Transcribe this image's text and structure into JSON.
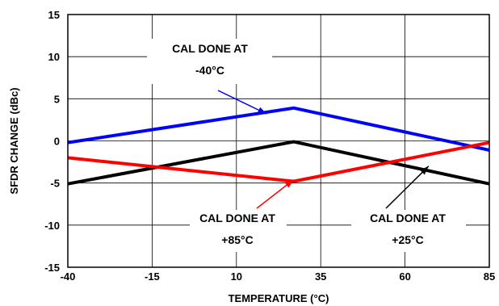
{
  "chart_data": {
    "type": "line",
    "title": "",
    "xlabel": "TEMPERATURE (°C)",
    "ylabel": "SFDR CHANGE (dBc)",
    "xlim": [
      -40,
      85
    ],
    "ylim": [
      -15,
      15
    ],
    "xticks": [
      -40,
      -15,
      10,
      35,
      60,
      85
    ],
    "yticks": [
      -15,
      -10,
      -5,
      0,
      5,
      10,
      15
    ],
    "grid": true,
    "series": [
      {
        "name": "CAL DONE AT -40°C",
        "color": "#0000ff",
        "x": [
          -40,
          27,
          85
        ],
        "y": [
          -0.2,
          3.9,
          -1.1
        ]
      },
      {
        "name": "CAL DONE AT +25°C",
        "color": "#000000",
        "x": [
          -40,
          27,
          85
        ],
        "y": [
          -5.1,
          -0.1,
          -5.1
        ]
      },
      {
        "name": "CAL DONE AT +85°C",
        "color": "#ff0000",
        "x": [
          -40,
          27,
          85
        ],
        "y": [
          -2.0,
          -4.8,
          -0.2
        ]
      }
    ],
    "annotations": [
      {
        "lines": [
          "CAL DONE AT",
          "-40°C"
        ],
        "color": "#0000ff",
        "arrow_to": [
          19,
          3.2
        ]
      },
      {
        "lines": [
          "CAL DONE AT",
          "+85°C"
        ],
        "color": "#ff0000",
        "arrow_to": [
          27,
          -4.6
        ]
      },
      {
        "lines": [
          "CAL DONE AT",
          "+25°C"
        ],
        "color": "#000000",
        "arrow_to": [
          67,
          -3.0
        ]
      }
    ]
  }
}
